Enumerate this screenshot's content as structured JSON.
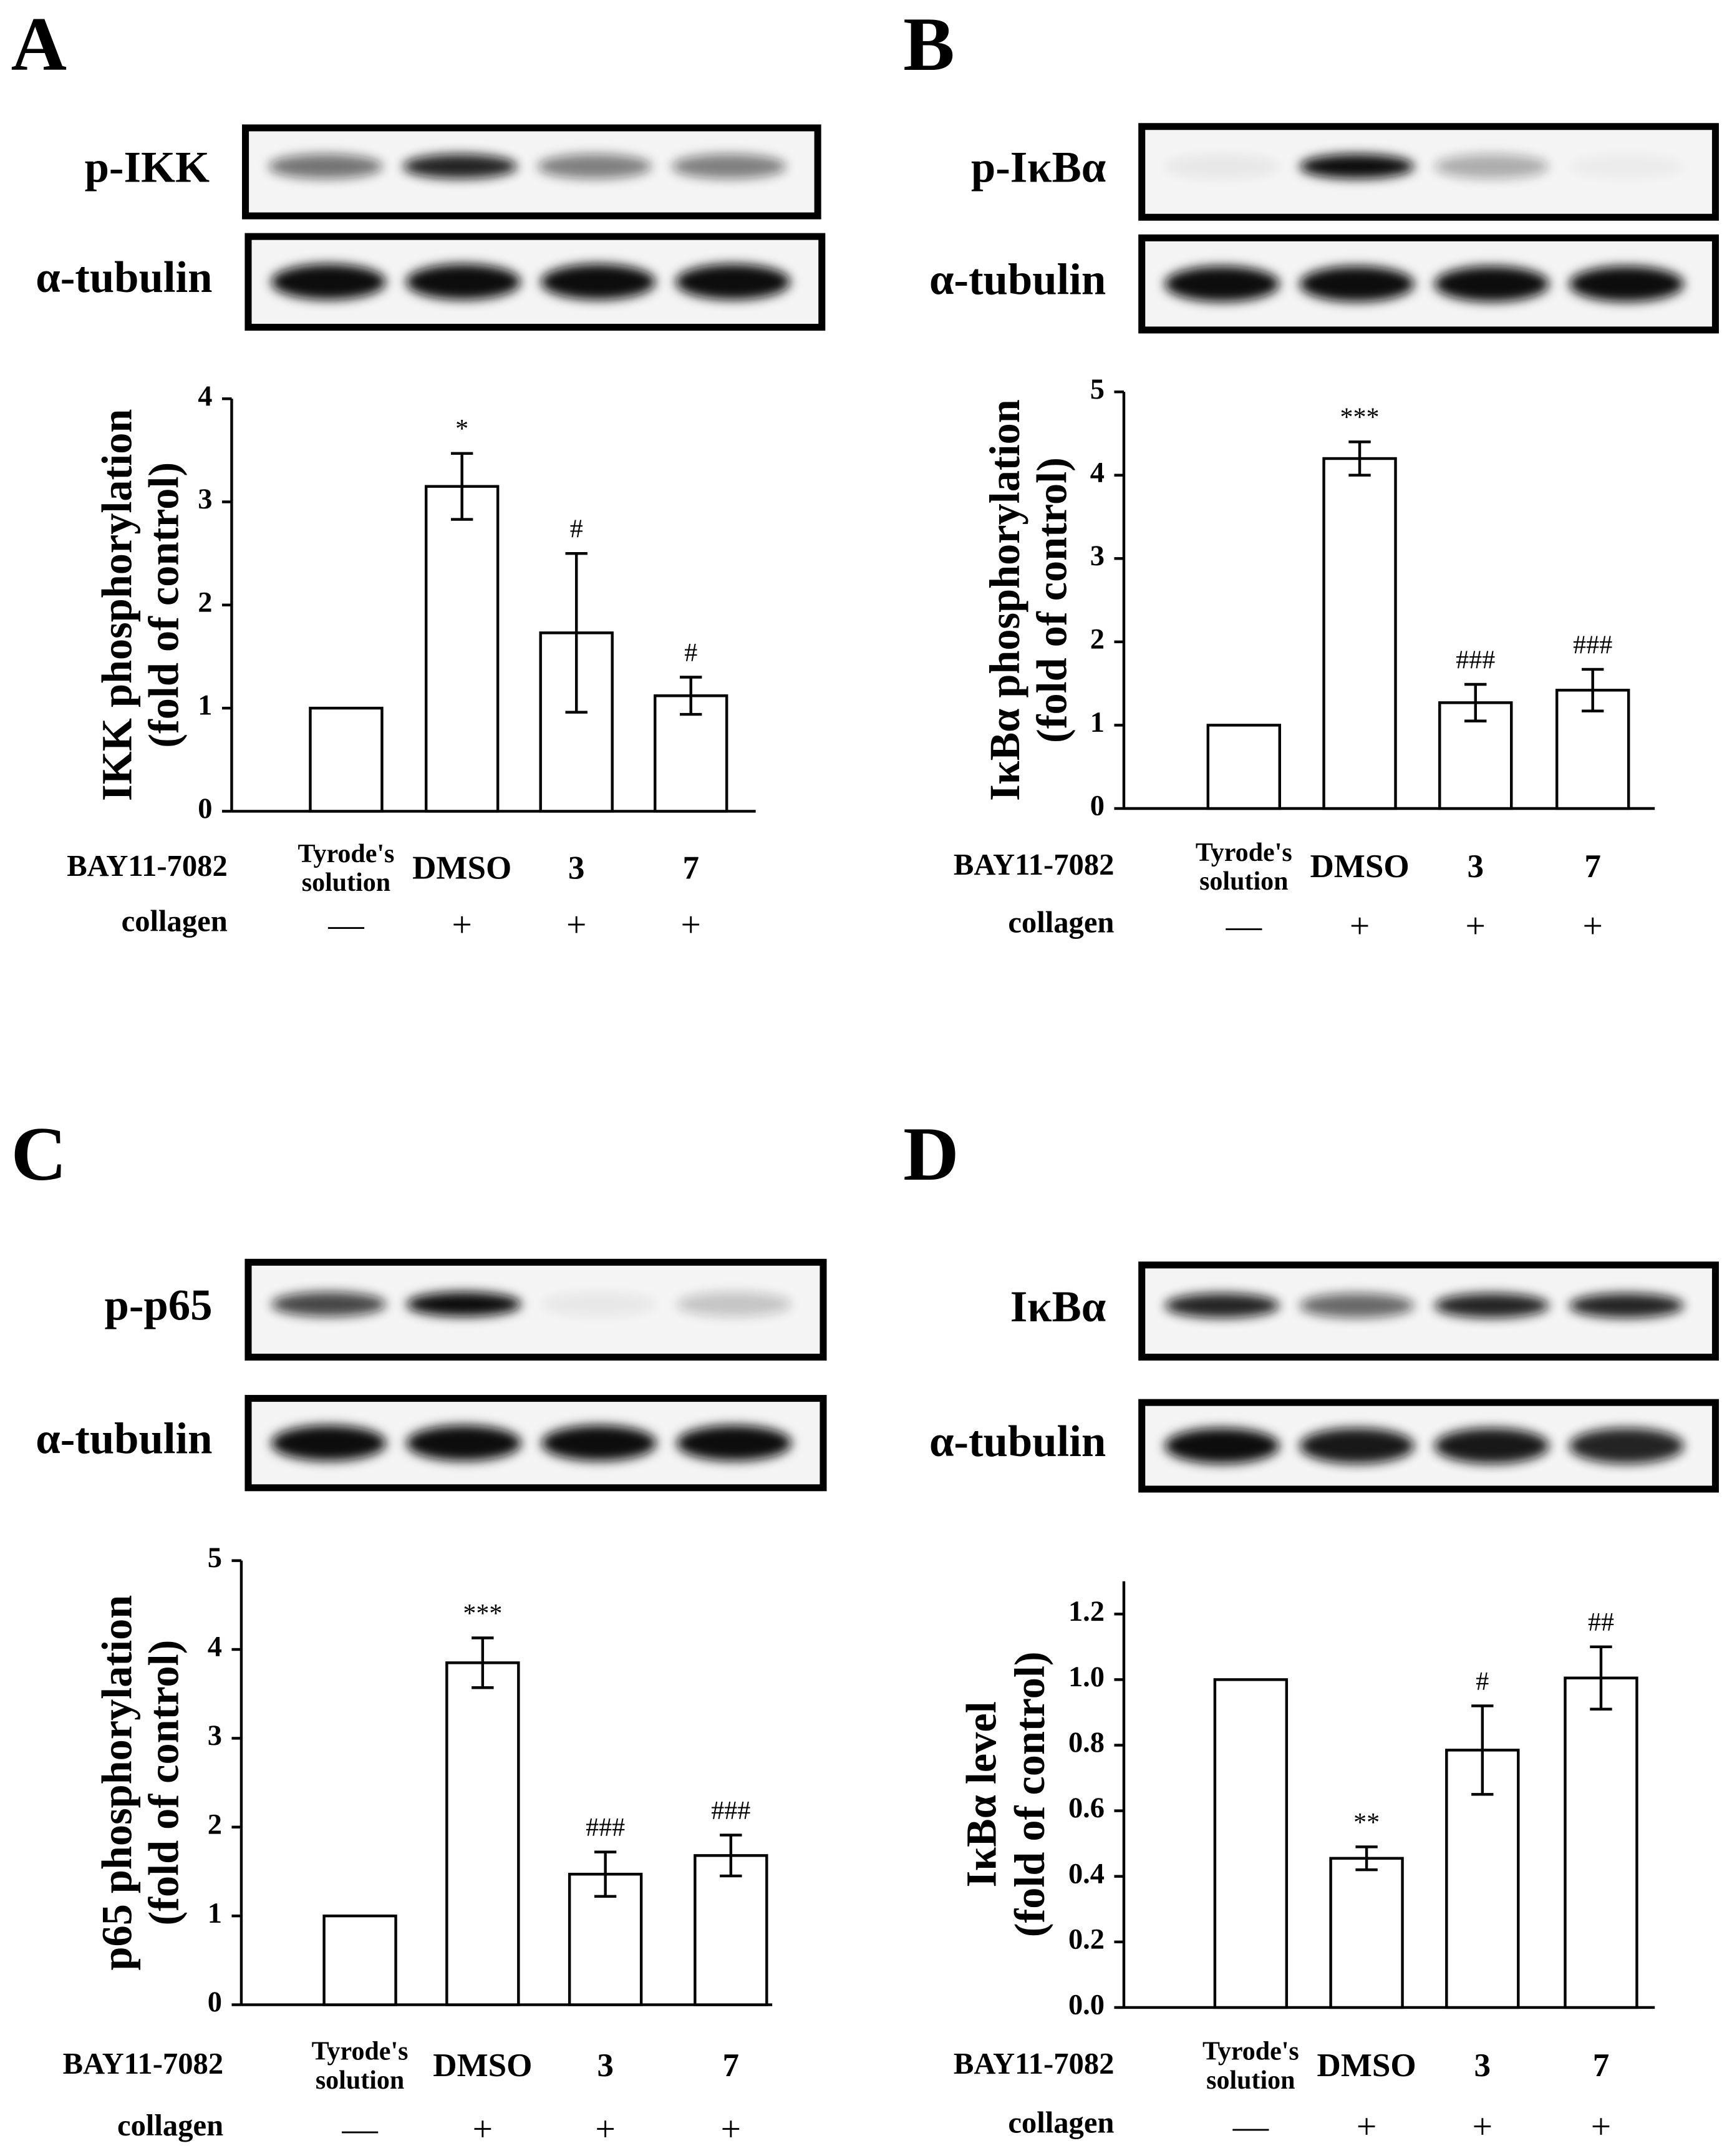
{
  "chart_data": [
    {
      "type": "bar",
      "panel": "A",
      "blots": [
        "p-IKK",
        "α-tubulin"
      ],
      "ylabel": [
        "IKK phosphorylation",
        "(fold of control)"
      ],
      "categories": [
        "Tyrode's solution",
        "DMSO",
        "3",
        "7"
      ],
      "treatment_label": "BAY11-7082",
      "collagen_label": "collagen",
      "collagen": [
        "—",
        "+",
        "+",
        "+"
      ],
      "values": [
        1,
        3.15,
        1.73,
        1.12
      ],
      "errors": [
        null,
        0.32,
        0.77,
        0.18
      ],
      "annotations": [
        null,
        "*",
        "#",
        "#"
      ],
      "ylim": [
        0,
        4
      ],
      "yticks": [
        0,
        1,
        2,
        3,
        4
      ]
    },
    {
      "type": "bar",
      "panel": "B",
      "blots": [
        "p-IκBα",
        "α-tubulin"
      ],
      "ylabel": [
        "IκBα phosphorylation",
        "(fold of control)"
      ],
      "categories": [
        "Tyrode's solution",
        "DMSO",
        "3",
        "7"
      ],
      "treatment_label": "BAY11-7082",
      "collagen_label": "collagen",
      "collagen": [
        "—",
        "+",
        "+",
        "+"
      ],
      "values": [
        1,
        4.2,
        1.27,
        1.42
      ],
      "errors": [
        null,
        0.2,
        0.22,
        0.25
      ],
      "annotations": [
        null,
        "***",
        "###",
        "###"
      ],
      "ylim": [
        0,
        5
      ],
      "yticks": [
        0,
        1,
        2,
        3,
        4,
        5
      ]
    },
    {
      "type": "bar",
      "panel": "C",
      "blots": [
        "p-p65",
        "α-tubulin"
      ],
      "ylabel": [
        "p65 phosphorylation",
        "(fold of control)"
      ],
      "categories": [
        "Tyrode's solution",
        "DMSO",
        "3",
        "7"
      ],
      "treatment_label": "BAY11-7082",
      "collagen_label": "collagen",
      "collagen": [
        "—",
        "+",
        "+",
        "+"
      ],
      "values": [
        1,
        3.85,
        1.47,
        1.68
      ],
      "errors": [
        null,
        0.28,
        0.25,
        0.23
      ],
      "annotations": [
        null,
        "***",
        "###",
        "###"
      ],
      "ylim": [
        0,
        5
      ],
      "yticks": [
        0,
        1,
        2,
        3,
        4,
        5
      ]
    },
    {
      "type": "bar",
      "panel": "D",
      "blots": [
        "IκBα",
        "α-tubulin"
      ],
      "ylabel": [
        "IκBα level",
        "(fold of control)"
      ],
      "categories": [
        "Tyrode's solution",
        "DMSO",
        "3",
        "7"
      ],
      "treatment_label": "BAY11-7082",
      "collagen_label": "collagen",
      "collagen": [
        "—",
        "+",
        "+",
        "+"
      ],
      "values": [
        1,
        0.455,
        0.785,
        1.005
      ],
      "errors": [
        null,
        0.035,
        0.135,
        0.095
      ],
      "annotations": [
        null,
        "**",
        "#",
        "##"
      ],
      "ylim": [
        0,
        1.3
      ],
      "yticks": [
        {
          "value": 0,
          "label": "0.0"
        },
        0.2,
        0.4,
        0.6,
        0.8,
        {
          "value": 1,
          "label": "1.0"
        },
        {
          "value": 1.2,
          "label": "1.2"
        }
      ]
    }
  ]
}
